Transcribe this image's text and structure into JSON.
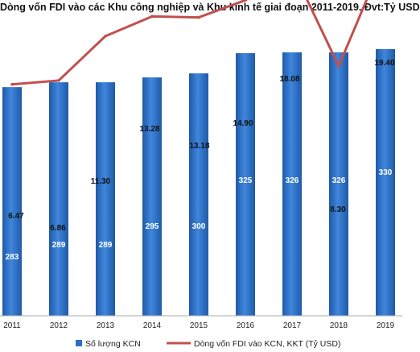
{
  "chart_data": {
    "type": "bar",
    "title": "Dòng vốn FDI vào các Khu công nghiệp và Khu kinh tế giai đoạn 2011-2019. Đvt:Tỷ USD",
    "categories": [
      "2011",
      "2012",
      "2013",
      "2014",
      "2015",
      "2016",
      "2017",
      "2018",
      "2019"
    ],
    "series": [
      {
        "name": "Số lượng KCN",
        "kind": "bar",
        "color": "#2e6fc4",
        "values": [
          283,
          289,
          289,
          295,
          300,
          325,
          326,
          326,
          330
        ]
      },
      {
        "name": "Dòng vốn FDI vào KCN, KKT (Tỷ USD)",
        "kind": "line",
        "color": "#c0504d",
        "values": [
          6.47,
          6.86,
          11.3,
          13.28,
          13.18,
          14.9,
          18.08,
          8.3,
          19.4
        ]
      }
    ],
    "bar_labels": [
      "283",
      "289",
      "289",
      "295",
      "300",
      "325",
      "326",
      "326",
      "330"
    ],
    "line_labels": [
      "6.47",
      "6.86",
      "11.30",
      "13.28",
      "13.18",
      "14.90",
      "18.08",
      "8.30",
      "19.40"
    ],
    "legend_position": "bottom",
    "grid": false
  }
}
